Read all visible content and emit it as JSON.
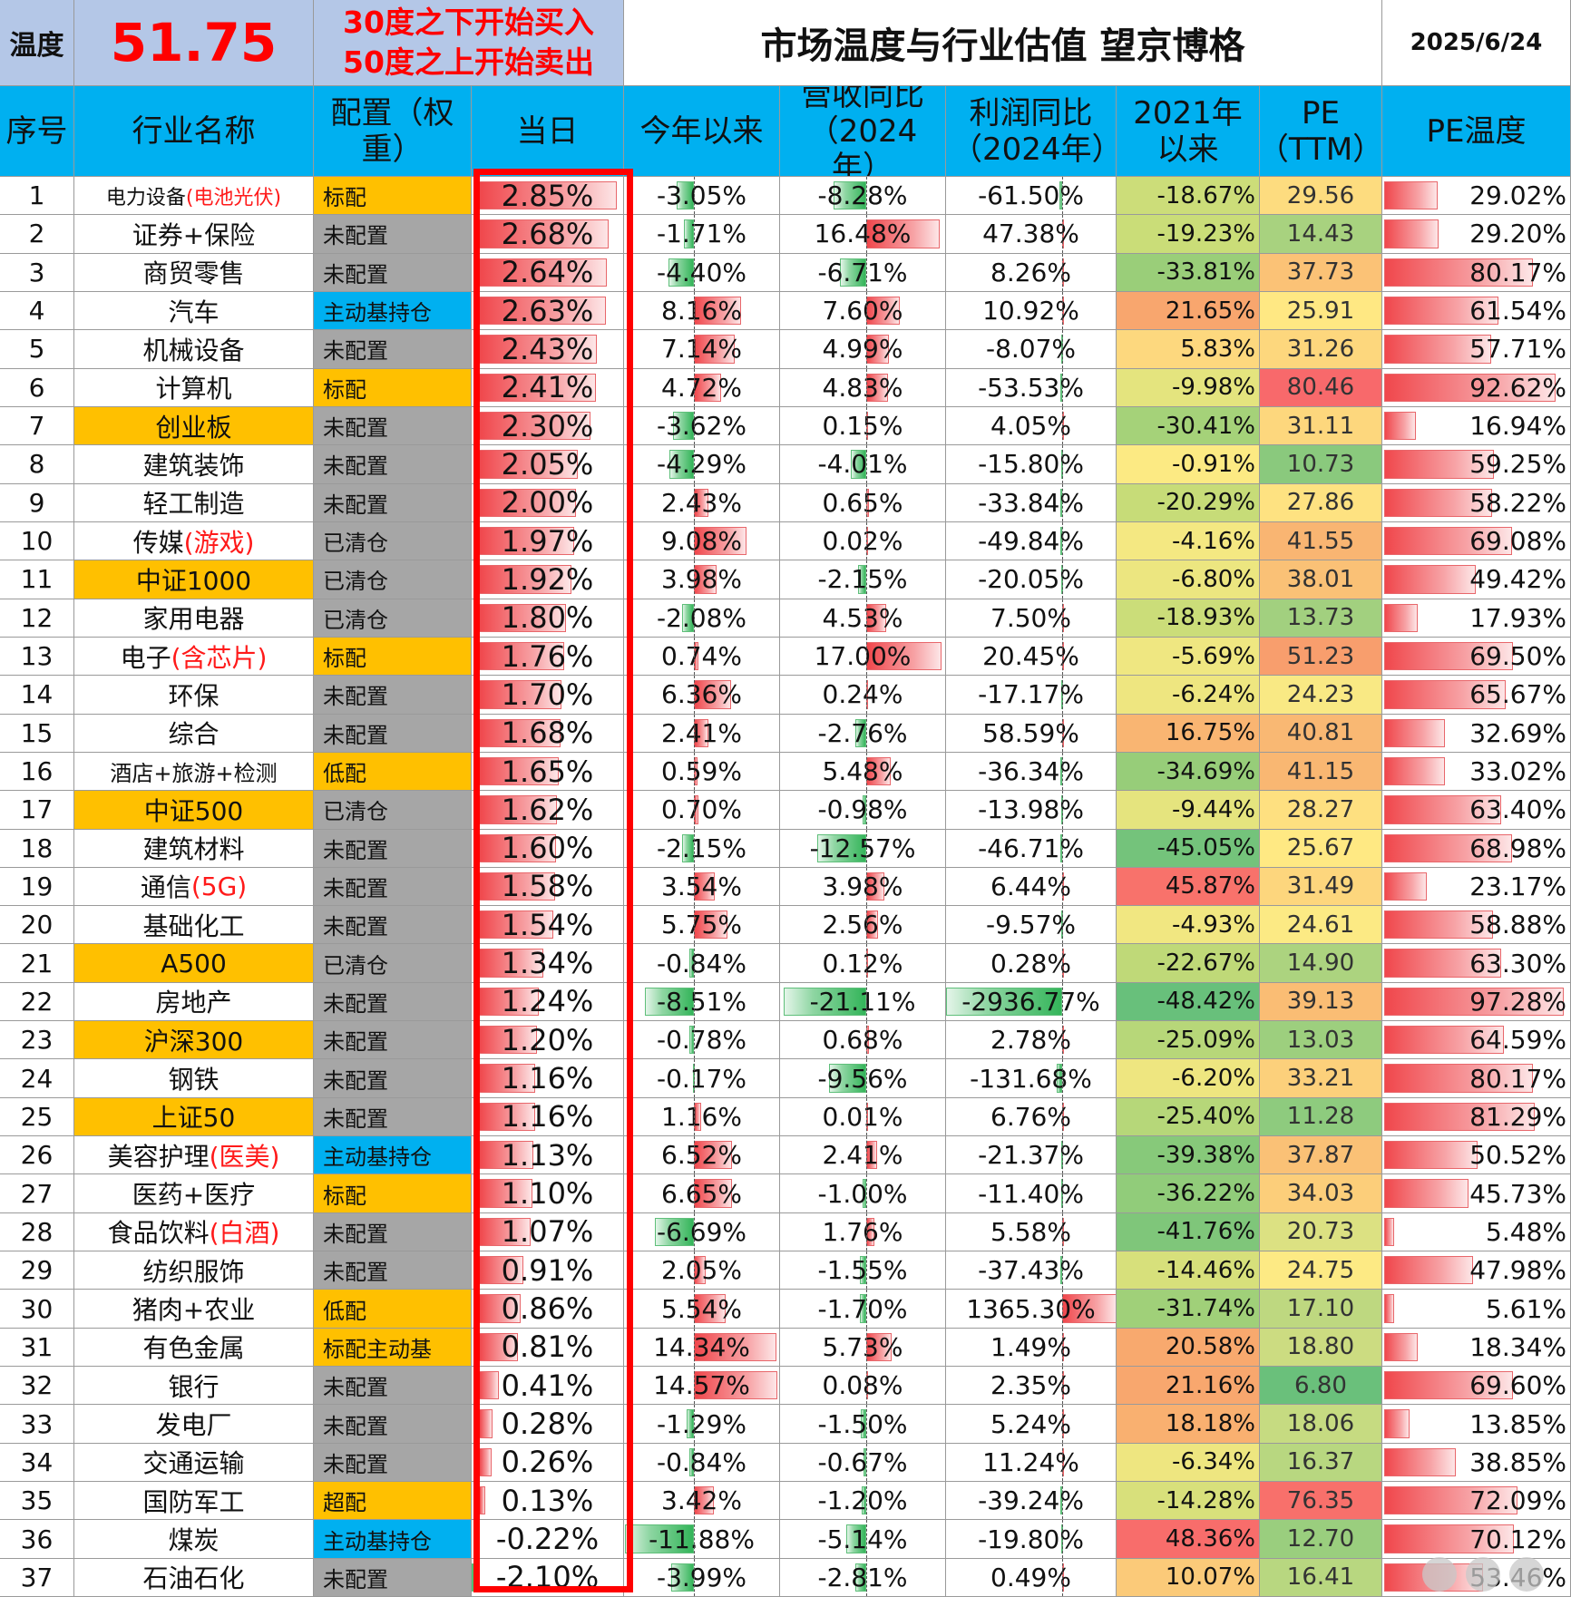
{
  "top": {
    "temp_label": "温度",
    "temp_value": "51.75",
    "rule_line1": "30度之下开始买入",
    "rule_line2": "50度之上开始卖出",
    "title": "市场温度与行业估值 望京博格",
    "date": "2025/6/24"
  },
  "headers": {
    "seq": "序号",
    "name": "行业名称",
    "alloc": "配置（权重）",
    "day": "当日",
    "ytd": "今年以来",
    "rev": "营收同比（2024年）",
    "profit": "利润同比（2024年）",
    "since2021": "2021年以来",
    "pe": "PE（TTM）",
    "pe_temp": "PE温度"
  },
  "colors": {
    "header_bg": "#00b0f0",
    "orange": "#ffc000",
    "gray": "#a6a6a6",
    "blue": "#00b0f0",
    "light_blue": "#b4c7e7",
    "red": "#ff0000"
  },
  "rows": [
    {
      "n": "1",
      "name": "电力设备",
      "sub": "(电池光伏)",
      "alloc": "标配",
      "day": "2.85%",
      "ytd": "-3.05%",
      "rev": "-8.28%",
      "profit": "-61.50%",
      "s21": "-18.67%",
      "pe": "29.56",
      "pet": "29.02%"
    },
    {
      "n": "2",
      "name": "证券+保险",
      "sub": "",
      "alloc": "未配置",
      "day": "2.68%",
      "ytd": "-1.71%",
      "rev": "16.48%",
      "profit": "47.38%",
      "s21": "-19.23%",
      "pe": "14.43",
      "pet": "29.20%"
    },
    {
      "n": "3",
      "name": "商贸零售",
      "sub": "",
      "alloc": "未配置",
      "day": "2.64%",
      "ytd": "-4.40%",
      "rev": "-6.71%",
      "profit": "8.26%",
      "s21": "-33.81%",
      "pe": "37.73",
      "pet": "80.17%"
    },
    {
      "n": "4",
      "name": "汽车",
      "sub": "",
      "alloc": "主动基持仓",
      "day": "2.63%",
      "ytd": "8.16%",
      "rev": "7.60%",
      "profit": "10.92%",
      "s21": "21.65%",
      "pe": "25.91",
      "pet": "61.54%"
    },
    {
      "n": "5",
      "name": "机械设备",
      "sub": "",
      "alloc": "未配置",
      "day": "2.43%",
      "ytd": "7.14%",
      "rev": "4.99%",
      "profit": "-8.07%",
      "s21": "5.83%",
      "pe": "31.26",
      "pet": "57.71%"
    },
    {
      "n": "6",
      "name": "计算机",
      "sub": "",
      "alloc": "标配",
      "day": "2.41%",
      "ytd": "4.72%",
      "rev": "4.83%",
      "profit": "-53.53%",
      "s21": "-9.98%",
      "pe": "80.46",
      "pet": "92.62%"
    },
    {
      "n": "7",
      "name": "创业板",
      "sub": "",
      "alloc": "未配置",
      "day": "2.30%",
      "ytd": "-3.62%",
      "rev": "0.15%",
      "profit": "4.05%",
      "s21": "-30.41%",
      "pe": "31.11",
      "pet": "16.94%"
    },
    {
      "n": "8",
      "name": "建筑装饰",
      "sub": "",
      "alloc": "未配置",
      "day": "2.05%",
      "ytd": "-4.29%",
      "rev": "-4.01%",
      "profit": "-15.80%",
      "s21": "-0.91%",
      "pe": "10.73",
      "pet": "59.25%"
    },
    {
      "n": "9",
      "name": "轻工制造",
      "sub": "",
      "alloc": "未配置",
      "day": "2.00%",
      "ytd": "2.43%",
      "rev": "0.65%",
      "profit": "-33.84%",
      "s21": "-20.29%",
      "pe": "27.86",
      "pet": "58.22%"
    },
    {
      "n": "10",
      "name": "传媒",
      "sub": "(游戏)",
      "alloc": "已清仓",
      "day": "1.97%",
      "ytd": "9.08%",
      "rev": "0.02%",
      "profit": "-49.84%",
      "s21": "-4.16%",
      "pe": "41.55",
      "pet": "69.08%"
    },
    {
      "n": "11",
      "name": "中证1000",
      "sub": "",
      "alloc": "已清仓",
      "day": "1.92%",
      "ytd": "3.98%",
      "rev": "-2.15%",
      "profit": "-20.05%",
      "s21": "-6.80%",
      "pe": "38.01",
      "pet": "49.42%"
    },
    {
      "n": "12",
      "name": "家用电器",
      "sub": "",
      "alloc": "已清仓",
      "day": "1.80%",
      "ytd": "-2.08%",
      "rev": "4.53%",
      "profit": "7.50%",
      "s21": "-18.93%",
      "pe": "13.73",
      "pet": "17.93%"
    },
    {
      "n": "13",
      "name": "电子",
      "sub": "(含芯片)",
      "alloc": "标配",
      "day": "1.76%",
      "ytd": "0.74%",
      "rev": "17.00%",
      "profit": "20.45%",
      "s21": "-5.69%",
      "pe": "51.23",
      "pet": "69.50%"
    },
    {
      "n": "14",
      "name": "环保",
      "sub": "",
      "alloc": "未配置",
      "day": "1.70%",
      "ytd": "6.36%",
      "rev": "0.24%",
      "profit": "-17.17%",
      "s21": "-6.24%",
      "pe": "24.23",
      "pet": "65.67%"
    },
    {
      "n": "15",
      "name": "综合",
      "sub": "",
      "alloc": "未配置",
      "day": "1.68%",
      "ytd": "2.41%",
      "rev": "-2.76%",
      "profit": "58.59%",
      "s21": "16.75%",
      "pe": "40.81",
      "pet": "32.69%"
    },
    {
      "n": "16",
      "name": "酒店+旅游+检测",
      "sub": "",
      "alloc": "低配",
      "day": "1.65%",
      "ytd": "0.59%",
      "rev": "5.48%",
      "profit": "-36.34%",
      "s21": "-34.69%",
      "pe": "41.15",
      "pet": "33.02%"
    },
    {
      "n": "17",
      "name": "中证500",
      "sub": "",
      "alloc": "已清仓",
      "day": "1.62%",
      "ytd": "0.70%",
      "rev": "-0.98%",
      "profit": "-13.98%",
      "s21": "-9.44%",
      "pe": "28.27",
      "pet": "63.40%"
    },
    {
      "n": "18",
      "name": "建筑材料",
      "sub": "",
      "alloc": "未配置",
      "day": "1.60%",
      "ytd": "-2.15%",
      "rev": "-12.57%",
      "profit": "-46.71%",
      "s21": "-45.05%",
      "pe": "25.67",
      "pet": "68.98%"
    },
    {
      "n": "19",
      "name": "通信",
      "sub": "(5G)",
      "alloc": "未配置",
      "day": "1.58%",
      "ytd": "3.54%",
      "rev": "3.98%",
      "profit": "6.44%",
      "s21": "45.87%",
      "pe": "31.49",
      "pet": "23.17%"
    },
    {
      "n": "20",
      "name": "基础化工",
      "sub": "",
      "alloc": "未配置",
      "day": "1.54%",
      "ytd": "5.75%",
      "rev": "2.56%",
      "profit": "-9.57%",
      "s21": "-4.93%",
      "pe": "24.61",
      "pet": "58.88%"
    },
    {
      "n": "21",
      "name": "A500",
      "sub": "",
      "alloc": "已清仓",
      "day": "1.34%",
      "ytd": "-0.84%",
      "rev": "0.12%",
      "profit": "0.28%",
      "s21": "-22.67%",
      "pe": "14.90",
      "pet": "63.30%"
    },
    {
      "n": "22",
      "name": "房地产",
      "sub": "",
      "alloc": "未配置",
      "day": "1.24%",
      "ytd": "-8.51%",
      "rev": "-21.11%",
      "profit": "-2936.77%",
      "s21": "-48.42%",
      "pe": "39.13",
      "pet": "97.28%"
    },
    {
      "n": "23",
      "name": "沪深300",
      "sub": "",
      "alloc": "未配置",
      "day": "1.20%",
      "ytd": "-0.78%",
      "rev": "0.68%",
      "profit": "2.78%",
      "s21": "-25.09%",
      "pe": "13.03",
      "pet": "64.59%"
    },
    {
      "n": "24",
      "name": "钢铁",
      "sub": "",
      "alloc": "未配置",
      "day": "1.16%",
      "ytd": "-0.17%",
      "rev": "-9.56%",
      "profit": "-131.68%",
      "s21": "-6.20%",
      "pe": "33.21",
      "pet": "80.17%"
    },
    {
      "n": "25",
      "name": "上证50",
      "sub": "",
      "alloc": "未配置",
      "day": "1.16%",
      "ytd": "1.16%",
      "rev": "0.01%",
      "profit": "6.76%",
      "s21": "-25.40%",
      "pe": "11.28",
      "pet": "81.29%"
    },
    {
      "n": "26",
      "name": "美容护理",
      "sub": "(医美)",
      "alloc": "主动基持仓",
      "day": "1.13%",
      "ytd": "6.52%",
      "rev": "2.41%",
      "profit": "-21.37%",
      "s21": "-39.38%",
      "pe": "37.87",
      "pet": "50.52%"
    },
    {
      "n": "27",
      "name": "医药+医疗",
      "sub": "",
      "alloc": "标配",
      "day": "1.10%",
      "ytd": "6.65%",
      "rev": "-1.00%",
      "profit": "-11.40%",
      "s21": "-36.22%",
      "pe": "34.03",
      "pet": "45.73%"
    },
    {
      "n": "28",
      "name": "食品饮料",
      "sub": "(白酒)",
      "alloc": "未配置",
      "day": "1.07%",
      "ytd": "-6.69%",
      "rev": "1.76%",
      "profit": "5.58%",
      "s21": "-41.76%",
      "pe": "20.73",
      "pet": "5.48%"
    },
    {
      "n": "29",
      "name": "纺织服饰",
      "sub": "",
      "alloc": "未配置",
      "day": "0.91%",
      "ytd": "2.05%",
      "rev": "-1.55%",
      "profit": "-37.43%",
      "s21": "-14.46%",
      "pe": "24.75",
      "pet": "47.98%"
    },
    {
      "n": "30",
      "name": "猪肉+农业",
      "sub": "",
      "alloc": "低配",
      "day": "0.86%",
      "ytd": "5.54%",
      "rev": "-1.70%",
      "profit": "1365.30%",
      "s21": "-31.74%",
      "pe": "17.10",
      "pet": "5.61%"
    },
    {
      "n": "31",
      "name": "有色金属",
      "sub": "",
      "alloc": "标配主动基",
      "day": "0.81%",
      "ytd": "14.34%",
      "rev": "5.73%",
      "profit": "1.49%",
      "s21": "20.58%",
      "pe": "18.80",
      "pet": "18.34%"
    },
    {
      "n": "32",
      "name": "银行",
      "sub": "",
      "alloc": "未配置",
      "day": "0.41%",
      "ytd": "14.57%",
      "rev": "0.08%",
      "profit": "2.35%",
      "s21": "21.16%",
      "pe": "6.80",
      "pet": "69.60%"
    },
    {
      "n": "33",
      "name": "发电厂",
      "sub": "",
      "alloc": "未配置",
      "day": "0.28%",
      "ytd": "-1.29%",
      "rev": "-1.50%",
      "profit": "5.24%",
      "s21": "18.18%",
      "pe": "18.06",
      "pet": "13.85%"
    },
    {
      "n": "34",
      "name": "交通运输",
      "sub": "",
      "alloc": "未配置",
      "day": "0.26%",
      "ytd": "-0.84%",
      "rev": "-0.67%",
      "profit": "11.24%",
      "s21": "-6.34%",
      "pe": "16.37",
      "pet": "38.85%"
    },
    {
      "n": "35",
      "name": "国防军工",
      "sub": "",
      "alloc": "超配",
      "day": "0.13%",
      "ytd": "3.42%",
      "rev": "-1.20%",
      "profit": "-39.24%",
      "s21": "-14.28%",
      "pe": "76.35",
      "pet": "72.09%"
    },
    {
      "n": "36",
      "name": "煤炭",
      "sub": "",
      "alloc": "主动基持仓",
      "day": "-0.22%",
      "ytd": "-11.88%",
      "rev": "-5.14%",
      "profit": "-19.80%",
      "s21": "48.36%",
      "pe": "12.70",
      "pet": "70.12%"
    },
    {
      "n": "37",
      "name": "石油石化",
      "sub": "",
      "alloc": "未配置",
      "day": "-2.10%",
      "ytd": "-3.99%",
      "rev": "-2.81%",
      "profit": "0.49%",
      "s21": "10.07%",
      "pe": "16.41",
      "pet": "53.46%"
    }
  ]
}
